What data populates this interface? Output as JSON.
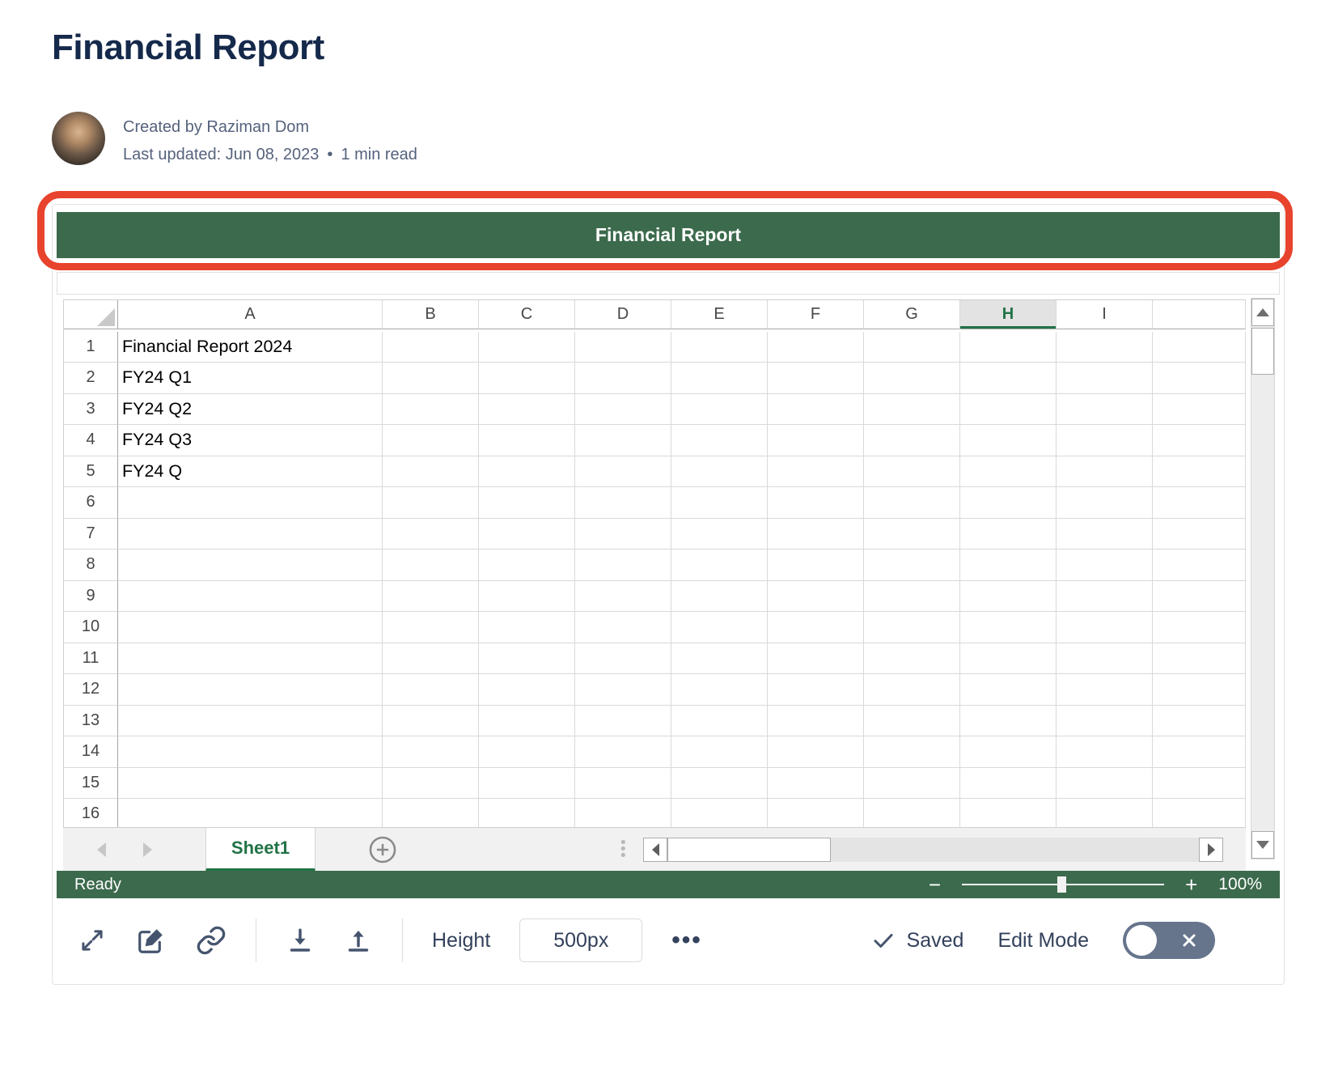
{
  "page_title": "Financial Report",
  "byline": {
    "created_by": "Created by Raziman Dom",
    "last_updated": "Last updated: Jun 08, 2023",
    "dot": "•",
    "read_time": "1 min read"
  },
  "embed": {
    "title_bar": "Financial Report",
    "colors": {
      "title_bar_green": "#3C6A4C",
      "excel_green": "#217346",
      "annotation_red": "#E8432D"
    },
    "grid": {
      "column_headers": [
        "A",
        "B",
        "C",
        "D",
        "E",
        "F",
        "G",
        "H",
        "I"
      ],
      "selected_column": "H",
      "row_count": 16,
      "column_a_values": [
        "Financial Report 2024",
        "FY24 Q1",
        "FY24 Q2",
        "FY24 Q3",
        "FY24 Q",
        "",
        "",
        "",
        "",
        "",
        "",
        "",
        "",
        "",
        "",
        ""
      ]
    },
    "sheet_tab": "Sheet1",
    "status_bar": {
      "status": "Ready",
      "zoom_minus": "−",
      "zoom_plus": "+",
      "zoom_level": "100%"
    },
    "footer_toolbar": {
      "height_label": "Height",
      "height_value": "500px",
      "more_icon": "•••",
      "saved_label": "Saved",
      "edit_mode_label": "Edit Mode"
    }
  }
}
